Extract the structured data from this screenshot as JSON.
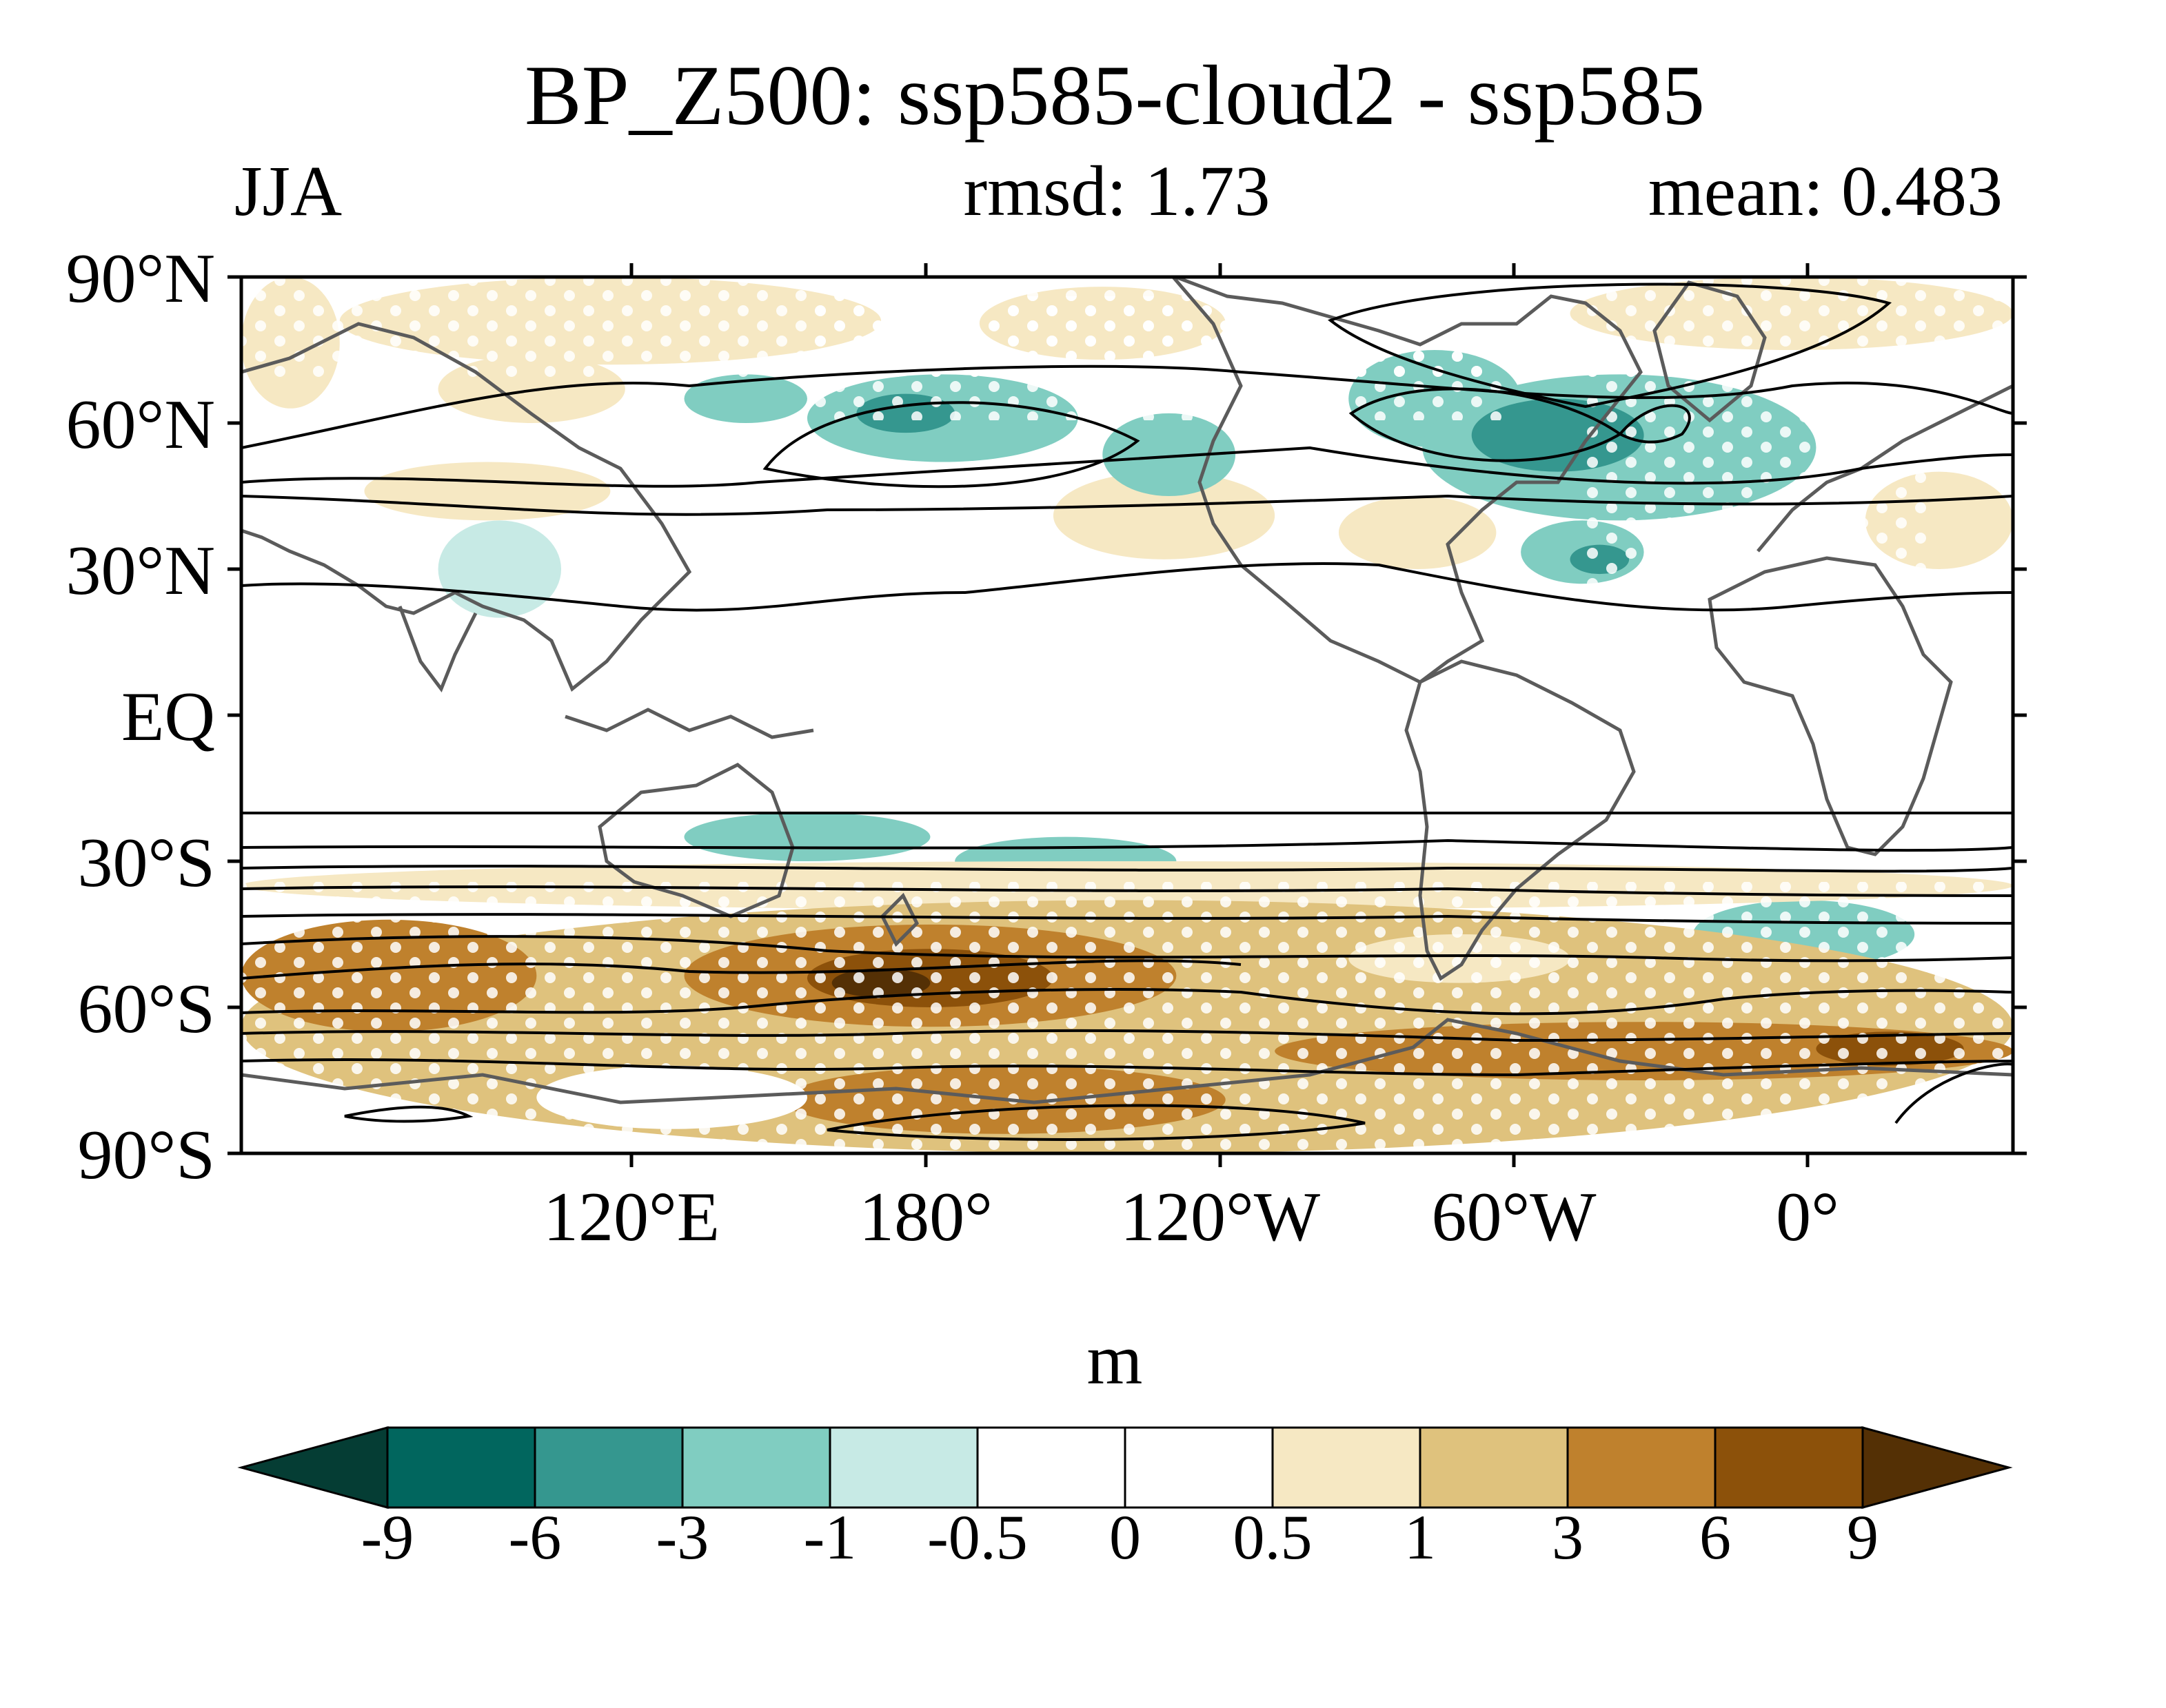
{
  "chart_data": {
    "type": "heatmap",
    "title": "BP_Z500: ssp585-cloud2 - ssp585",
    "season": "JJA",
    "rmsd_label": "rmsd: 1.73",
    "mean_label": "mean: 0.483",
    "x_tick_labels": [
      "120°E",
      "180°",
      "120°W",
      "60°W",
      "0°"
    ],
    "y_tick_labels": [
      "90°N",
      "60°N",
      "30°N",
      "EQ",
      "30°S",
      "60°S",
      "90°S"
    ],
    "colorbar": {
      "units": "m",
      "levels": [
        "-9",
        "-6",
        "-3",
        "-1",
        "-0.5",
        "0",
        "0.5",
        "1",
        "3",
        "6",
        "9"
      ],
      "colors": [
        "#053d34",
        "#01665e",
        "#35978f",
        "#80cdc1",
        "#c7eae5",
        "#ffffff",
        "#ffffff",
        "#f6e8c3",
        "#dfc27d",
        "#bf812d",
        "#8c510a",
        "#543005"
      ]
    },
    "regions": [
      {
        "lon": [
          60,
          80
        ],
        "lat": [
          63,
          90
        ],
        "level": 0.7
      },
      {
        "lon": [
          80,
          190
        ],
        "lat": [
          72,
          90
        ],
        "level": 0.7
      },
      {
        "lon": [
          210,
          260
        ],
        "lat": [
          73,
          88
        ],
        "level": 0.7
      },
      {
        "lon": [
          330,
          420
        ],
        "lat": [
          75,
          90
        ],
        "level": 0.7
      },
      {
        "lon": [
          100,
          138
        ],
        "lat": [
          60,
          74
        ],
        "level": 0.7
      },
      {
        "lon": [
          85,
          135
        ],
        "lat": [
          40,
          52
        ],
        "level": 0.7
      },
      {
        "lon": [
          225,
          270
        ],
        "lat": [
          32,
          50
        ],
        "level": 0.7
      },
      {
        "lon": [
          283,
          315
        ],
        "lat": [
          30,
          45
        ],
        "level": 0.7
      },
      {
        "lon": [
          390,
          420
        ],
        "lat": [
          30,
          50
        ],
        "level": 0.7
      },
      {
        "lon": [
          150,
          175
        ],
        "lat": [
          60,
          70
        ],
        "level": -2
      },
      {
        "lon": [
          175,
          230
        ],
        "lat": [
          52,
          70
        ],
        "level": -2
      },
      {
        "lon": [
          185,
          205
        ],
        "lat": [
          58,
          66
        ],
        "level": -4
      },
      {
        "lon": [
          235,
          262
        ],
        "lat": [
          45,
          62
        ],
        "level": -2
      },
      {
        "lon": [
          285,
          320
        ],
        "lat": [
          55,
          75
        ],
        "level": -2
      },
      {
        "lon": [
          300,
          380
        ],
        "lat": [
          40,
          70
        ],
        "level": -2
      },
      {
        "lon": [
          310,
          345
        ],
        "lat": [
          50,
          65
        ],
        "level": -4
      },
      {
        "lon": [
          320,
          345
        ],
        "lat": [
          27,
          40
        ],
        "level": -3
      },
      {
        "lon": [
          330,
          342
        ],
        "lat": [
          29,
          35
        ],
        "level": -4
      },
      {
        "lon": [
          100,
          125
        ],
        "lat": [
          20,
          40
        ],
        "level": -0.7
      },
      {
        "lon": [
          150,
          200
        ],
        "lat": [
          -30,
          -20
        ],
        "level": -2
      },
      {
        "lon": [
          205,
          250
        ],
        "lat": [
          -35,
          -25
        ],
        "level": -2
      },
      {
        "lon": [
          355,
          400
        ],
        "lat": [
          -52,
          -38
        ],
        "level": -2
      },
      {
        "lon": [
          60,
          420
        ],
        "lat": [
          -40,
          -30
        ],
        "level": 0.7
      },
      {
        "lon": [
          60,
          420
        ],
        "lat": [
          -90,
          -38
        ],
        "level": 2
      },
      {
        "lon": [
          60,
          120
        ],
        "lat": [
          -65,
          -42
        ],
        "level": 4
      },
      {
        "lon": [
          150,
          250
        ],
        "lat": [
          -64,
          -43
        ],
        "level": 4
      },
      {
        "lon": [
          175,
          225
        ],
        "lat": [
          -60,
          -48
        ],
        "level": 7
      },
      {
        "lon": [
          180,
          200
        ],
        "lat": [
          -58,
          -52
        ],
        "level": 10
      },
      {
        "lon": [
          270,
          420
        ],
        "lat": [
          -75,
          -63
        ],
        "level": 4
      },
      {
        "lon": [
          380,
          410
        ],
        "lat": [
          -72,
          -65
        ],
        "level": 7
      },
      {
        "lon": [
          170,
          260
        ],
        "lat": [
          -86,
          -72
        ],
        "level": 4
      },
      {
        "lon": [
          120,
          175
        ],
        "lat": [
          -85,
          -72
        ],
        "level": 0.3
      },
      {
        "lon": [
          285,
          330
        ],
        "lat": [
          -55,
          -45
        ],
        "level": 0.7
      }
    ]
  }
}
